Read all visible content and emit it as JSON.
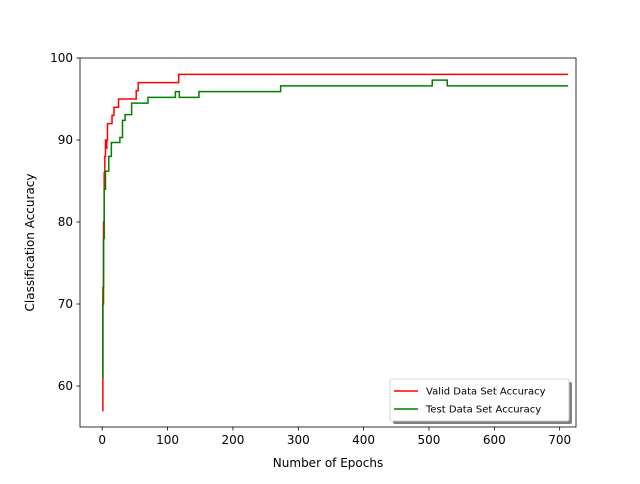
{
  "chart_data": {
    "type": "line",
    "title": "",
    "xlabel": "Number of Epochs",
    "ylabel": "Classification Accuracy",
    "xlim": [
      -34,
      725
    ],
    "ylim": [
      55,
      100
    ],
    "xticks": [
      0,
      100,
      200,
      300,
      400,
      500,
      600,
      700
    ],
    "yticks": [
      60,
      70,
      80,
      90,
      100
    ],
    "grid": false,
    "legend": {
      "position": "lower-right",
      "shadow": true
    },
    "series": [
      {
        "name": "Valid Data Set Accuracy",
        "color": "#ff0000",
        "step": true,
        "points": [
          [
            0,
            57
          ],
          [
            1,
            72
          ],
          [
            2,
            80
          ],
          [
            3,
            86
          ],
          [
            4,
            88
          ],
          [
            5,
            90
          ],
          [
            6,
            89
          ],
          [
            7,
            90
          ],
          [
            8,
            92
          ],
          [
            15,
            93
          ],
          [
            18,
            94
          ],
          [
            25,
            95
          ],
          [
            52,
            96
          ],
          [
            55,
            97
          ],
          [
            117,
            98
          ],
          [
            713,
            98
          ]
        ]
      },
      {
        "name": "Test Data Set Accuracy",
        "color": "#008000",
        "step": true,
        "points": [
          [
            0,
            61
          ],
          [
            1,
            70
          ],
          [
            2,
            78
          ],
          [
            3,
            84
          ],
          [
            5,
            86.2
          ],
          [
            10,
            88
          ],
          [
            14,
            89.7
          ],
          [
            27,
            90.3
          ],
          [
            31,
            92.4
          ],
          [
            35,
            93.1
          ],
          [
            45,
            94.5
          ],
          [
            70,
            95.2
          ],
          [
            112,
            95.9
          ],
          [
            118,
            95.2
          ],
          [
            148,
            95.9
          ],
          [
            273,
            96.6
          ],
          [
            505,
            97.3
          ],
          [
            528,
            96.6
          ],
          [
            713,
            96.6
          ]
        ]
      }
    ]
  }
}
